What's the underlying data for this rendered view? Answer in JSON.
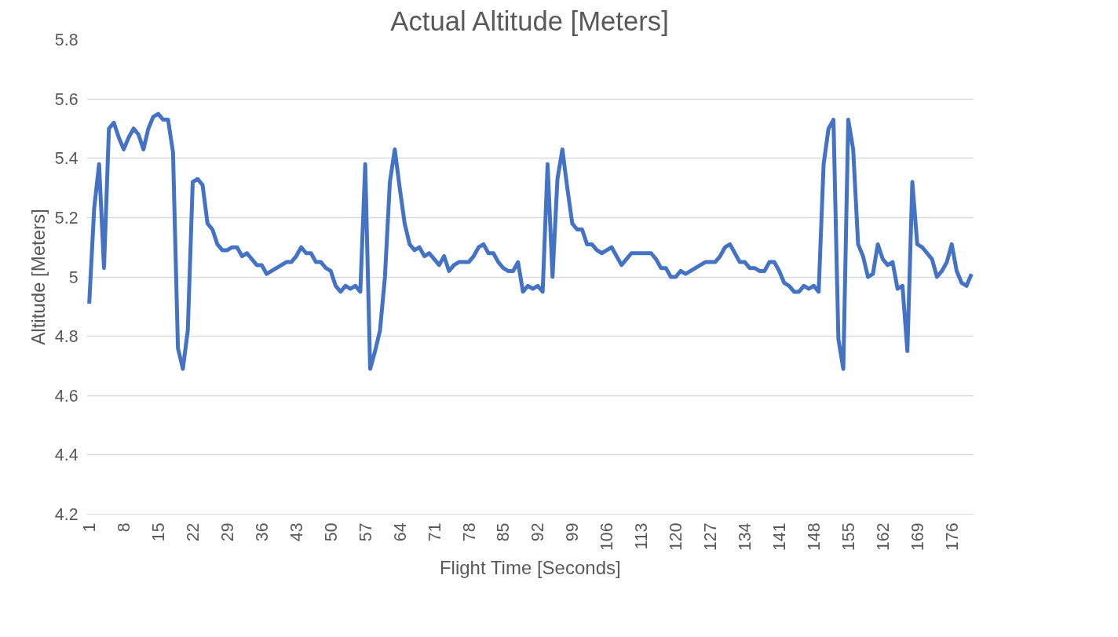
{
  "chart_data": {
    "type": "line",
    "title": "Actual Altitude [Meters]",
    "xlabel": "Flight Time [Seconds]",
    "ylabel": "Altitude [Meters]",
    "categories": [
      "1",
      null,
      null,
      null,
      null,
      null,
      null,
      "8",
      null,
      null,
      null,
      null,
      null,
      null,
      "15",
      null,
      null,
      null,
      null,
      null,
      null,
      "22",
      null,
      null,
      null,
      null,
      null,
      null,
      "29",
      null,
      null,
      null,
      null,
      null,
      null,
      "36",
      null,
      null,
      null,
      null,
      null,
      null,
      "43",
      null,
      null,
      null,
      null,
      null,
      null,
      "50",
      null,
      null,
      null,
      null,
      null,
      null,
      "57",
      null,
      null,
      null,
      null,
      null,
      null,
      "64",
      null,
      null,
      null,
      null,
      null,
      null,
      "71",
      null,
      null,
      null,
      null,
      null,
      null,
      "78",
      null,
      null,
      null,
      null,
      null,
      null,
      "85",
      null,
      null,
      null,
      null,
      null,
      null,
      "92",
      null,
      null,
      null,
      null,
      null,
      null,
      "99",
      null,
      null,
      null,
      null,
      null,
      null,
      "106",
      null,
      null,
      null,
      null,
      null,
      null,
      "113",
      null,
      null,
      null,
      null,
      null,
      null,
      "120",
      null,
      null,
      null,
      null,
      null,
      null,
      "127",
      null,
      null,
      null,
      null,
      null,
      null,
      "134",
      null,
      null,
      null,
      null,
      null,
      null,
      "141",
      null,
      null,
      null,
      null,
      null,
      null,
      "148",
      null,
      null,
      null,
      null,
      null,
      null,
      "155",
      null,
      null,
      null,
      null,
      null,
      null,
      "162",
      null,
      null,
      null,
      null,
      null,
      null,
      "169",
      null,
      null,
      null,
      null,
      null,
      null,
      "176",
      null,
      null,
      null,
      null
    ],
    "series": [
      {
        "color": "#4472c4",
        "values": [
          4.91,
          5.23,
          5.38,
          5.03,
          5.5,
          5.52,
          5.47,
          5.43,
          5.47,
          5.5,
          5.48,
          5.43,
          5.5,
          5.54,
          5.55,
          5.53,
          5.53,
          5.42,
          4.76,
          4.69,
          4.82,
          5.32,
          5.33,
          5.31,
          5.18,
          5.16,
          5.11,
          5.09,
          5.09,
          5.1,
          5.1,
          5.07,
          5.08,
          5.06,
          5.04,
          5.04,
          5.01,
          5.02,
          5.03,
          5.04,
          5.05,
          5.05,
          5.07,
          5.1,
          5.08,
          5.08,
          5.05,
          5.05,
          5.03,
          5.02,
          4.97,
          4.95,
          4.97,
          4.96,
          4.97,
          4.95,
          5.38,
          4.69,
          4.75,
          4.82,
          5.0,
          5.32,
          5.43,
          5.3,
          5.18,
          5.11,
          5.09,
          5.1,
          5.07,
          5.08,
          5.06,
          5.04,
          5.07,
          5.02,
          5.04,
          5.05,
          5.05,
          5.05,
          5.07,
          5.1,
          5.11,
          5.08,
          5.08,
          5.05,
          5.03,
          5.02,
          5.02,
          5.05,
          4.95,
          4.97,
          4.96,
          4.97,
          4.95,
          5.38,
          5.0,
          5.33,
          5.43,
          5.3,
          5.18,
          5.16,
          5.16,
          5.11,
          5.11,
          5.09,
          5.08,
          5.09,
          5.1,
          5.07,
          5.04,
          5.06,
          5.08,
          5.08,
          5.08,
          5.08,
          5.08,
          5.06,
          5.03,
          5.03,
          5.0,
          5.0,
          5.02,
          5.01,
          5.02,
          5.03,
          5.04,
          5.05,
          5.05,
          5.05,
          5.07,
          5.1,
          5.11,
          5.08,
          5.05,
          5.05,
          5.03,
          5.03,
          5.02,
          5.02,
          5.05,
          5.05,
          5.02,
          4.98,
          4.97,
          4.95,
          4.95,
          4.97,
          4.96,
          4.97,
          4.95,
          5.38,
          5.5,
          5.53,
          4.79,
          4.69,
          5.53,
          5.43,
          5.11,
          5.07,
          5.0,
          5.01,
          5.11,
          5.06,
          5.04,
          5.05,
          4.96,
          4.97,
          4.75,
          5.32,
          5.11,
          5.1,
          5.08,
          5.06,
          5.0,
          5.02,
          5.05,
          5.11,
          5.02,
          4.98,
          4.97,
          5.01
        ]
      }
    ],
    "ylim": [
      4.2,
      5.8
    ],
    "yticks": [
      4.2,
      4.4,
      4.6,
      4.8,
      {
        "value": 5,
        "label": "5"
      },
      5.2,
      5.4,
      5.6,
      5.8
    ],
    "grid": "y",
    "marker": "none",
    "line_style": "solid"
  }
}
